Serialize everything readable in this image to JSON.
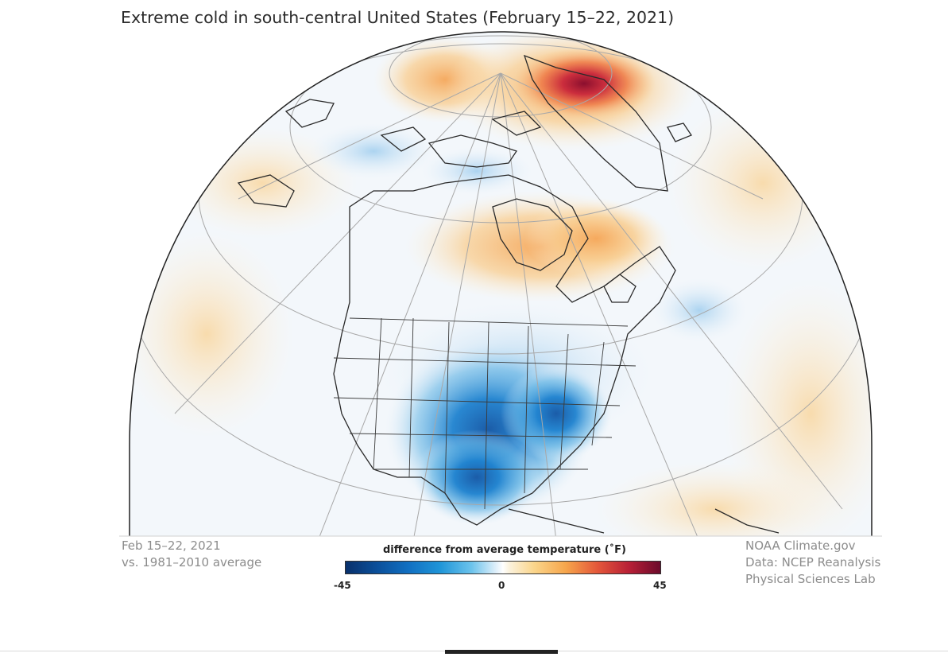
{
  "title": "Extreme cold in south-central United States (February 15–22, 2021)",
  "left_note": {
    "line1": "Feb 15–22, 2021",
    "line2": "vs. 1981–2010 average"
  },
  "right_note": {
    "line1": "NOAA Climate.gov",
    "line2": "Data: NCEP Reanalysis",
    "line3": "Physical Sciences Lab"
  },
  "legend": {
    "title": "difference from average temperature (˚F)",
    "min_label": "-45",
    "mid_label": "0",
    "max_label": "45",
    "colors": {
      "cold_extreme": "#08306b",
      "cold": "#1f95d8",
      "neutral": "#ffffff",
      "warm": "#f6a54b",
      "warm_extreme": "#6b0a2b"
    }
  },
  "map": {
    "projection": "orthographic",
    "region": "North America and Arctic",
    "anomalies": [
      {
        "region": "south-central United States",
        "sign": "cold"
      },
      {
        "region": "northern Greenland / Arctic",
        "sign": "warm"
      },
      {
        "region": "Hudson Bay / eastern Canada",
        "sign": "warm"
      }
    ]
  }
}
